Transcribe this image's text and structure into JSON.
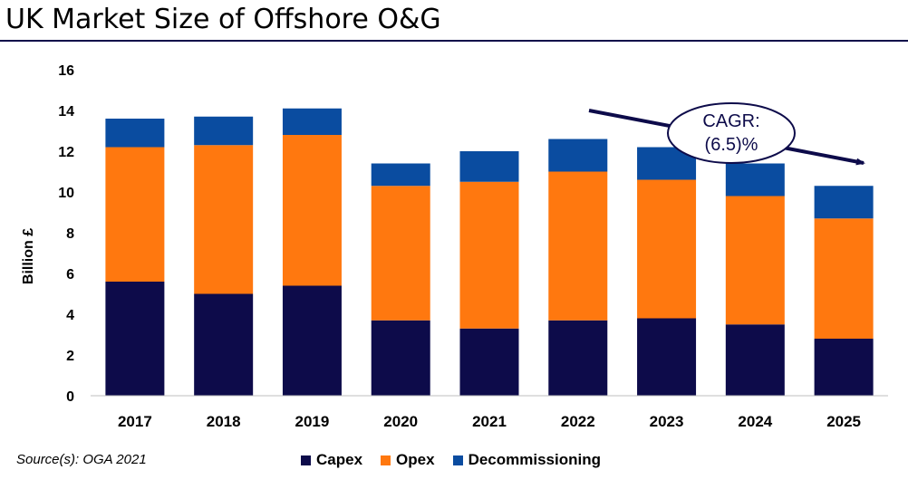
{
  "title": "UK Market Size of Offshore O&G",
  "source": "Source(s): OGA 2021",
  "chart_data": {
    "type": "bar",
    "stacked": true,
    "categories": [
      "2017",
      "2018",
      "2019",
      "2020",
      "2021",
      "2022",
      "2023",
      "2024",
      "2025"
    ],
    "series": [
      {
        "name": "Capex",
        "color": "#0d0b4a",
        "values": [
          5.6,
          5.0,
          5.4,
          3.7,
          3.3,
          3.7,
          3.8,
          3.5,
          2.8
        ]
      },
      {
        "name": "Opex",
        "color": "#ff780f",
        "values": [
          6.6,
          7.3,
          7.4,
          6.6,
          7.2,
          7.3,
          6.8,
          6.3,
          5.9
        ]
      },
      {
        "name": "Decommissioning",
        "color": "#0a4ca0",
        "values": [
          1.4,
          1.4,
          1.3,
          1.1,
          1.5,
          1.6,
          1.6,
          1.6,
          1.6
        ]
      }
    ],
    "ylabel": "Billion £",
    "xlabel": "",
    "ylim": [
      0,
      16
    ],
    "yticks": [
      0,
      2,
      4,
      6,
      8,
      10,
      12,
      14,
      16
    ],
    "grid": false,
    "legend": "bottom",
    "annotation": {
      "line1": "CAGR:",
      "line2": "(6.5)%"
    }
  }
}
